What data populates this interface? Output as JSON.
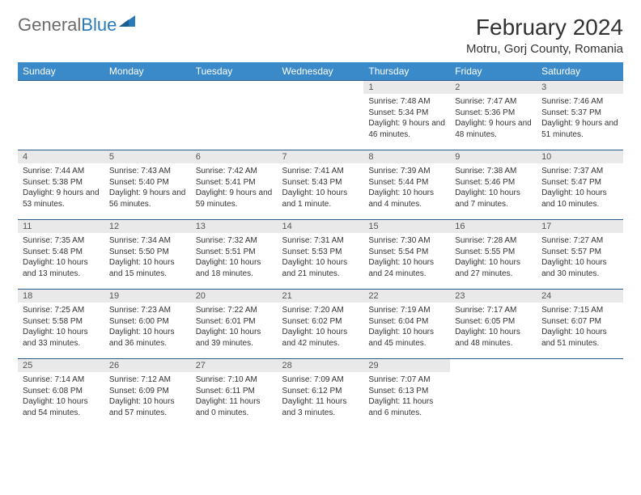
{
  "brand": {
    "part1": "General",
    "part2": "Blue"
  },
  "title": "February 2024",
  "location": "Motru, Gorj County, Romania",
  "theme": {
    "header_bg": "#3a89c9",
    "header_fg": "#ffffff",
    "daynum_bg": "#e9e9e9",
    "rule_color": "#2a5a8a",
    "logo_accent": "#2a7ab9"
  },
  "weekdays": [
    "Sunday",
    "Monday",
    "Tuesday",
    "Wednesday",
    "Thursday",
    "Friday",
    "Saturday"
  ],
  "weeks": [
    [
      {
        "n": "",
        "sr": "",
        "ss": "",
        "dl": ""
      },
      {
        "n": "",
        "sr": "",
        "ss": "",
        "dl": ""
      },
      {
        "n": "",
        "sr": "",
        "ss": "",
        "dl": ""
      },
      {
        "n": "",
        "sr": "",
        "ss": "",
        "dl": ""
      },
      {
        "n": "1",
        "sr": "Sunrise: 7:48 AM",
        "ss": "Sunset: 5:34 PM",
        "dl": "Daylight: 9 hours and 46 minutes."
      },
      {
        "n": "2",
        "sr": "Sunrise: 7:47 AM",
        "ss": "Sunset: 5:36 PM",
        "dl": "Daylight: 9 hours and 48 minutes."
      },
      {
        "n": "3",
        "sr": "Sunrise: 7:46 AM",
        "ss": "Sunset: 5:37 PM",
        "dl": "Daylight: 9 hours and 51 minutes."
      }
    ],
    [
      {
        "n": "4",
        "sr": "Sunrise: 7:44 AM",
        "ss": "Sunset: 5:38 PM",
        "dl": "Daylight: 9 hours and 53 minutes."
      },
      {
        "n": "5",
        "sr": "Sunrise: 7:43 AM",
        "ss": "Sunset: 5:40 PM",
        "dl": "Daylight: 9 hours and 56 minutes."
      },
      {
        "n": "6",
        "sr": "Sunrise: 7:42 AM",
        "ss": "Sunset: 5:41 PM",
        "dl": "Daylight: 9 hours and 59 minutes."
      },
      {
        "n": "7",
        "sr": "Sunrise: 7:41 AM",
        "ss": "Sunset: 5:43 PM",
        "dl": "Daylight: 10 hours and 1 minute."
      },
      {
        "n": "8",
        "sr": "Sunrise: 7:39 AM",
        "ss": "Sunset: 5:44 PM",
        "dl": "Daylight: 10 hours and 4 minutes."
      },
      {
        "n": "9",
        "sr": "Sunrise: 7:38 AM",
        "ss": "Sunset: 5:46 PM",
        "dl": "Daylight: 10 hours and 7 minutes."
      },
      {
        "n": "10",
        "sr": "Sunrise: 7:37 AM",
        "ss": "Sunset: 5:47 PM",
        "dl": "Daylight: 10 hours and 10 minutes."
      }
    ],
    [
      {
        "n": "11",
        "sr": "Sunrise: 7:35 AM",
        "ss": "Sunset: 5:48 PM",
        "dl": "Daylight: 10 hours and 13 minutes."
      },
      {
        "n": "12",
        "sr": "Sunrise: 7:34 AM",
        "ss": "Sunset: 5:50 PM",
        "dl": "Daylight: 10 hours and 15 minutes."
      },
      {
        "n": "13",
        "sr": "Sunrise: 7:32 AM",
        "ss": "Sunset: 5:51 PM",
        "dl": "Daylight: 10 hours and 18 minutes."
      },
      {
        "n": "14",
        "sr": "Sunrise: 7:31 AM",
        "ss": "Sunset: 5:53 PM",
        "dl": "Daylight: 10 hours and 21 minutes."
      },
      {
        "n": "15",
        "sr": "Sunrise: 7:30 AM",
        "ss": "Sunset: 5:54 PM",
        "dl": "Daylight: 10 hours and 24 minutes."
      },
      {
        "n": "16",
        "sr": "Sunrise: 7:28 AM",
        "ss": "Sunset: 5:55 PM",
        "dl": "Daylight: 10 hours and 27 minutes."
      },
      {
        "n": "17",
        "sr": "Sunrise: 7:27 AM",
        "ss": "Sunset: 5:57 PM",
        "dl": "Daylight: 10 hours and 30 minutes."
      }
    ],
    [
      {
        "n": "18",
        "sr": "Sunrise: 7:25 AM",
        "ss": "Sunset: 5:58 PM",
        "dl": "Daylight: 10 hours and 33 minutes."
      },
      {
        "n": "19",
        "sr": "Sunrise: 7:23 AM",
        "ss": "Sunset: 6:00 PM",
        "dl": "Daylight: 10 hours and 36 minutes."
      },
      {
        "n": "20",
        "sr": "Sunrise: 7:22 AM",
        "ss": "Sunset: 6:01 PM",
        "dl": "Daylight: 10 hours and 39 minutes."
      },
      {
        "n": "21",
        "sr": "Sunrise: 7:20 AM",
        "ss": "Sunset: 6:02 PM",
        "dl": "Daylight: 10 hours and 42 minutes."
      },
      {
        "n": "22",
        "sr": "Sunrise: 7:19 AM",
        "ss": "Sunset: 6:04 PM",
        "dl": "Daylight: 10 hours and 45 minutes."
      },
      {
        "n": "23",
        "sr": "Sunrise: 7:17 AM",
        "ss": "Sunset: 6:05 PM",
        "dl": "Daylight: 10 hours and 48 minutes."
      },
      {
        "n": "24",
        "sr": "Sunrise: 7:15 AM",
        "ss": "Sunset: 6:07 PM",
        "dl": "Daylight: 10 hours and 51 minutes."
      }
    ],
    [
      {
        "n": "25",
        "sr": "Sunrise: 7:14 AM",
        "ss": "Sunset: 6:08 PM",
        "dl": "Daylight: 10 hours and 54 minutes."
      },
      {
        "n": "26",
        "sr": "Sunrise: 7:12 AM",
        "ss": "Sunset: 6:09 PM",
        "dl": "Daylight: 10 hours and 57 minutes."
      },
      {
        "n": "27",
        "sr": "Sunrise: 7:10 AM",
        "ss": "Sunset: 6:11 PM",
        "dl": "Daylight: 11 hours and 0 minutes."
      },
      {
        "n": "28",
        "sr": "Sunrise: 7:09 AM",
        "ss": "Sunset: 6:12 PM",
        "dl": "Daylight: 11 hours and 3 minutes."
      },
      {
        "n": "29",
        "sr": "Sunrise: 7:07 AM",
        "ss": "Sunset: 6:13 PM",
        "dl": "Daylight: 11 hours and 6 minutes."
      },
      {
        "n": "",
        "sr": "",
        "ss": "",
        "dl": ""
      },
      {
        "n": "",
        "sr": "",
        "ss": "",
        "dl": ""
      }
    ]
  ]
}
